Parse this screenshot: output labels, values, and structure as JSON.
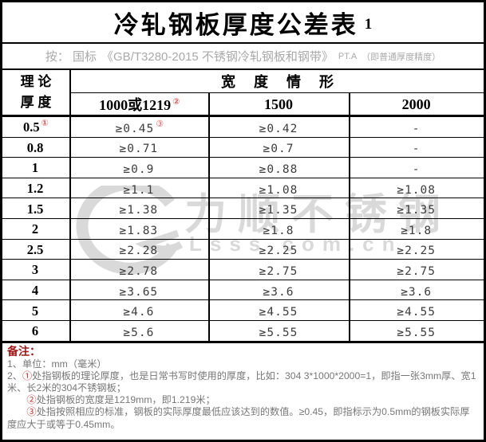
{
  "title": {
    "main": "冷轧钢板厚度公差表",
    "index": "1"
  },
  "subtitle": {
    "prefix": "按： 国标",
    "standard": "《GB/T3280-2015 不锈钢冷轧钢板和钢带》",
    "grade": "PT.A",
    "grade_note": "（即普通厚度精度）"
  },
  "table": {
    "corner_line1": "理 论",
    "corner_line2": "厚 度",
    "group_header": "宽 度 情 形",
    "width_columns": [
      {
        "label": "1000或1219",
        "sup": "②"
      },
      {
        "label": "1500",
        "sup": ""
      },
      {
        "label": "2000",
        "sup": ""
      }
    ],
    "rows": [
      {
        "thickness": "0.5",
        "tsup": "①",
        "cells": [
          {
            "v": "≥0.45",
            "sup": "③"
          },
          {
            "v": "≥0.42",
            "sup": ""
          },
          {
            "v": "-",
            "sup": ""
          }
        ]
      },
      {
        "thickness": "0.8",
        "tsup": "",
        "cells": [
          {
            "v": "≥0.71",
            "sup": ""
          },
          {
            "v": "≥0.7",
            "sup": ""
          },
          {
            "v": "-",
            "sup": ""
          }
        ]
      },
      {
        "thickness": "1",
        "tsup": "",
        "cells": [
          {
            "v": "≥0.9",
            "sup": ""
          },
          {
            "v": "≥0.88",
            "sup": ""
          },
          {
            "v": "-",
            "sup": ""
          }
        ]
      },
      {
        "thickness": "1.2",
        "tsup": "",
        "cells": [
          {
            "v": "≥1.1",
            "sup": ""
          },
          {
            "v": "≥1.08",
            "sup": ""
          },
          {
            "v": "≥1.08",
            "sup": ""
          }
        ]
      },
      {
        "thickness": "1.5",
        "tsup": "",
        "cells": [
          {
            "v": "≥1.38",
            "sup": ""
          },
          {
            "v": "≥1.35",
            "sup": ""
          },
          {
            "v": "≥1.35",
            "sup": ""
          }
        ]
      },
      {
        "thickness": "2",
        "tsup": "",
        "cells": [
          {
            "v": "≥1.83",
            "sup": ""
          },
          {
            "v": "≥1.8",
            "sup": ""
          },
          {
            "v": "≥1.8",
            "sup": ""
          }
        ]
      },
      {
        "thickness": "2.5",
        "tsup": "",
        "cells": [
          {
            "v": "≥2.28",
            "sup": ""
          },
          {
            "v": "≥2.25",
            "sup": ""
          },
          {
            "v": "≥2.25",
            "sup": ""
          }
        ]
      },
      {
        "thickness": "3",
        "tsup": "",
        "cells": [
          {
            "v": "≥2.78",
            "sup": ""
          },
          {
            "v": "≥2.75",
            "sup": ""
          },
          {
            "v": "≥2.75",
            "sup": ""
          }
        ]
      },
      {
        "thickness": "4",
        "tsup": "",
        "cells": [
          {
            "v": "≥3.65",
            "sup": ""
          },
          {
            "v": "≥3.6",
            "sup": ""
          },
          {
            "v": "≥3.6",
            "sup": ""
          }
        ]
      },
      {
        "thickness": "5",
        "tsup": "",
        "cells": [
          {
            "v": "≥4.6",
            "sup": ""
          },
          {
            "v": "≥4.55",
            "sup": ""
          },
          {
            "v": "≥4.55",
            "sup": ""
          }
        ]
      },
      {
        "thickness": "6",
        "tsup": "",
        "cells": [
          {
            "v": "≥5.6",
            "sup": ""
          },
          {
            "v": "≥5.55",
            "sup": ""
          },
          {
            "v": "≥5.55",
            "sup": ""
          }
        ]
      }
    ]
  },
  "notes": {
    "header": "备注：",
    "items": [
      {
        "parts": [
          {
            "t": "1、单位：mm（毫米）"
          }
        ]
      },
      {
        "parts": [
          {
            "t": "2、"
          },
          {
            "t": "①",
            "red": true
          },
          {
            "t": "处指钢板的理论厚度，也是日常书写时使用的厚度，比如：304 3*1000*2000=1，即指一张3mm厚、宽1米、长2米的304不锈钢板；"
          }
        ]
      },
      {
        "parts": [
          {
            "t": "　　"
          },
          {
            "t": "②",
            "red": true
          },
          {
            "t": "处指钢板的宽度是1219mm，即1.219米；"
          }
        ]
      },
      {
        "parts": [
          {
            "t": "　　"
          },
          {
            "t": "③",
            "red": true
          },
          {
            "t": "处指按照相应的标准，钢板的实际厚度最低应该达到的数值。≥0.45，即指标示为0.5mm的钢板实际厚度应大于或等于0.45mm。"
          }
        ]
      }
    ]
  },
  "watermark": {
    "brand": "力顺不锈钢",
    "url": "Lsss.com.cn"
  },
  "colors": {
    "footnote_marker_red": "#e05c5c",
    "note_marker_red": "#c03028",
    "notes_header_red": "#a01818",
    "subtitle_gray": "#a9a9a9",
    "note_text_gray": "#777777",
    "watermark_gray": "#d9d9d9",
    "border_black": "#000000"
  }
}
